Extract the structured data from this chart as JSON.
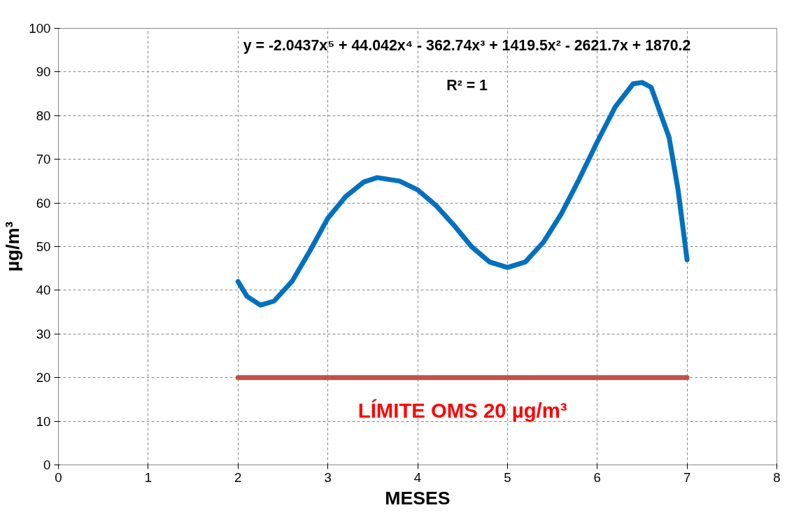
{
  "chart_data": {
    "type": "line",
    "xlabel": "MESES",
    "ylabel": "µg/m³",
    "series": [
      {
        "color": "#0070c0",
        "x": [
          2,
          2.1,
          2.25,
          2.4,
          2.6,
          2.8,
          3,
          3.2,
          3.4,
          3.55,
          3.8,
          4,
          4.2,
          4.4,
          4.6,
          4.8,
          5,
          5.2,
          5.4,
          5.6,
          5.8,
          6,
          6.2,
          6.4,
          6.5,
          6.6,
          6.8,
          6.9,
          7
        ],
        "values": [
          42,
          38.6,
          36.6,
          37.5,
          42,
          49,
          56.5,
          61.5,
          64.8,
          65.8,
          65,
          63,
          59.5,
          55,
          50,
          46.5,
          45.2,
          46.5,
          51,
          57.5,
          65.5,
          74,
          82,
          87.3,
          87.6,
          86.5,
          75,
          63,
          47
        ]
      },
      {
        "color": "#c0504d",
        "x": [
          2,
          7
        ],
        "values": [
          20,
          20
        ]
      }
    ],
    "annotations": [
      "y = -2.0437x⁵ + 44.042x⁴ - 362.74x³ + 1419.5x² - 2621.7x + 1870.2",
      "R² = 1",
      {
        "text": "LÍMITE OMS 20 µg/m³",
        "x": 4.5,
        "y": 20
      }
    ],
    "xlim": [
      0,
      8
    ],
    "xticks": [
      0,
      1,
      2,
      3,
      4,
      5,
      6,
      7,
      8
    ],
    "ylim": [
      0,
      100
    ],
    "yticks": [
      0,
      10,
      20,
      30,
      40,
      50,
      60,
      70,
      80,
      90,
      100
    ],
    "grid": true,
    "line_style": "solid",
    "marker": "none"
  }
}
